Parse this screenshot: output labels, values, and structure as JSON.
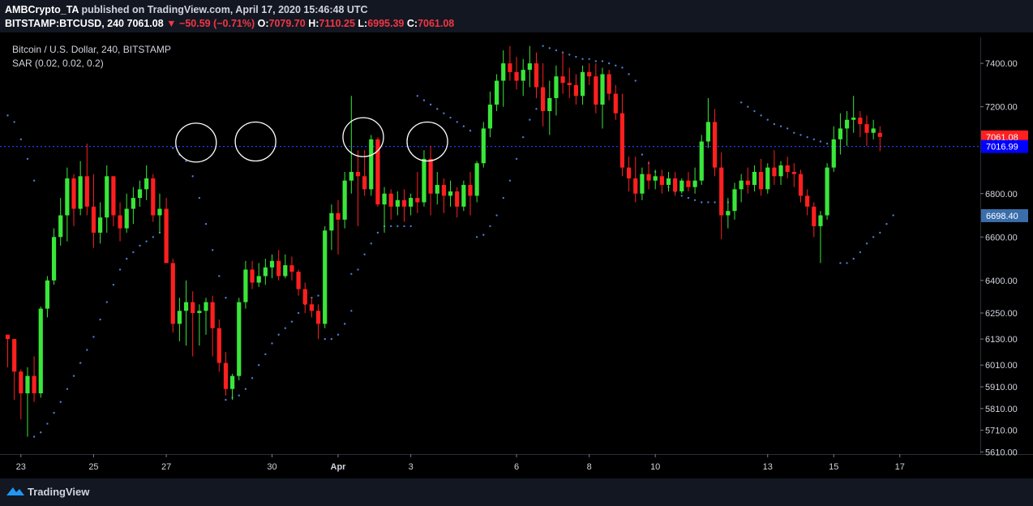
{
  "header": {
    "author": "AMBCrypto_TA",
    "published_text": "published on TradingView.com, April 17, 2020 15:46:48 UTC",
    "symbol": "BITSTAMP:BTCUSD, 240",
    "last": "7061.08",
    "change_arrow": "▼",
    "change": "−50.59 (−0.71%)",
    "o_label": "O:",
    "o": "7079.70",
    "h_label": "H:",
    "h": "7110.25",
    "l_label": "L:",
    "l": "6995.39",
    "c_label": "C:",
    "c": "7061.08"
  },
  "footer": {
    "brand": "TradingView",
    "brand_icon": "tradingview-logo-icon"
  },
  "colors": {
    "up": "#39e639",
    "down": "#ff1f1f",
    "sar": "#4e7bd8",
    "background": "#000000",
    "axis": "#2a2e39"
  },
  "chart_data": {
    "type": "candlestick",
    "title": "Bitcoin / U.S. Dollar, 240, BITSTAMP",
    "indicator": "SAR (0.02, 0.02, 0.2)",
    "x_ticks": [
      "23",
      "25",
      "27",
      "30",
      "Apr",
      "3",
      "6",
      "8",
      "10",
      "13",
      "15",
      "17"
    ],
    "y_ticks": [
      5610,
      5710,
      5810,
      5910,
      6010,
      6130,
      6250,
      6400,
      6600,
      6800,
      7200,
      7400
    ],
    "y_tick_labels": [
      "5610.00",
      "5710.00",
      "5810.00",
      "5910.00",
      "6010.00",
      "6130.00",
      "6250.00",
      "6400.00",
      "6600.00",
      "6800.00",
      "7200.00",
      "7400.00"
    ],
    "ylim": [
      5600,
      7520
    ],
    "price_labels": [
      {
        "value": 7061.08,
        "label": "7061.08",
        "color": "#ff1f1f"
      },
      {
        "value": 7016.99,
        "label": "7016.99",
        "color": "#0000ff"
      },
      {
        "value": 6698.4,
        "label": "6698.40",
        "color": "#3a6dab"
      }
    ],
    "hline": 7016.99,
    "circles": [
      {
        "index": 28.5,
        "price": 7035
      },
      {
        "index": 37.5,
        "price": 7040
      },
      {
        "index": 53.8,
        "price": 7060
      },
      {
        "index": 63.5,
        "price": 7040
      }
    ],
    "candles": [
      [
        6150,
        6150,
        6000,
        6130
      ],
      [
        6130,
        6130,
        5850,
        5980
      ],
      [
        5980,
        5990,
        5760,
        5880
      ],
      [
        5880,
        6000,
        5680,
        5960
      ],
      [
        5960,
        6050,
        5840,
        5880
      ],
      [
        5880,
        6280,
        5860,
        6270
      ],
      [
        6270,
        6420,
        6230,
        6400
      ],
      [
        6400,
        6640,
        6380,
        6600
      ],
      [
        6600,
        6780,
        6560,
        6700
      ],
      [
        6700,
        6920,
        6580,
        6870
      ],
      [
        6870,
        6890,
        6650,
        6730
      ],
      [
        6730,
        6950,
        6700,
        6880
      ],
      [
        6880,
        7030,
        6700,
        6740
      ],
      [
        6740,
        6890,
        6550,
        6620
      ],
      [
        6620,
        6760,
        6570,
        6690
      ],
      [
        6690,
        6930,
        6620,
        6880
      ],
      [
        6880,
        6880,
        6650,
        6700
      ],
      [
        6700,
        6760,
        6580,
        6640
      ],
      [
        6640,
        6800,
        6620,
        6730
      ],
      [
        6730,
        6830,
        6660,
        6780
      ],
      [
        6780,
        6860,
        6740,
        6820
      ],
      [
        6820,
        6930,
        6770,
        6870
      ],
      [
        6870,
        6890,
        6670,
        6700
      ],
      [
        6700,
        6800,
        6620,
        6730
      ],
      [
        6730,
        6780,
        6480,
        6480
      ],
      [
        6480,
        6500,
        6160,
        6200
      ],
      [
        6200,
        6320,
        6120,
        6260
      ],
      [
        6260,
        6400,
        6100,
        6300
      ],
      [
        6300,
        6350,
        6050,
        6250
      ],
      [
        6250,
        6290,
        6100,
        6260
      ],
      [
        6260,
        6320,
        6150,
        6300
      ],
      [
        6300,
        6330,
        6050,
        6180
      ],
      [
        6180,
        6220,
        5980,
        6020
      ],
      [
        6020,
        6070,
        5870,
        5900
      ],
      [
        5900,
        5970,
        5850,
        5960
      ],
      [
        5960,
        6320,
        5940,
        6300
      ],
      [
        6300,
        6490,
        6270,
        6450
      ],
      [
        6450,
        6490,
        6360,
        6390
      ],
      [
        6390,
        6480,
        6370,
        6420
      ],
      [
        6420,
        6500,
        6380,
        6460
      ],
      [
        6460,
        6520,
        6410,
        6490
      ],
      [
        6490,
        6540,
        6400,
        6420
      ],
      [
        6420,
        6520,
        6410,
        6470
      ],
      [
        6470,
        6510,
        6400,
        6440
      ],
      [
        6440,
        6450,
        6330,
        6360
      ],
      [
        6360,
        6390,
        6250,
        6290
      ],
      [
        6290,
        6320,
        6230,
        6260
      ],
      [
        6260,
        6290,
        6130,
        6200
      ],
      [
        6200,
        6650,
        6180,
        6630
      ],
      [
        6630,
        6750,
        6540,
        6710
      ],
      [
        6710,
        6770,
        6520,
        6680
      ],
      [
        6680,
        6900,
        6640,
        6860
      ],
      [
        6860,
        7250,
        6800,
        6900
      ],
      [
        6900,
        7000,
        6650,
        6880
      ],
      [
        6880,
        7000,
        6790,
        6820
      ],
      [
        6820,
        7070,
        6790,
        7050
      ],
      [
        7050,
        7060,
        6740,
        6750
      ],
      [
        6750,
        6830,
        6620,
        6800
      ],
      [
        6800,
        6820,
        6680,
        6740
      ],
      [
        6740,
        6810,
        6700,
        6770
      ],
      [
        6770,
        6820,
        6670,
        6740
      ],
      [
        6740,
        6800,
        6700,
        6780
      ],
      [
        6780,
        6900,
        6710,
        6760
      ],
      [
        6760,
        7000,
        6740,
        6960
      ],
      [
        6960,
        7020,
        6700,
        6800
      ],
      [
        6800,
        6900,
        6750,
        6840
      ],
      [
        6840,
        6870,
        6710,
        6790
      ],
      [
        6790,
        6860,
        6740,
        6810
      ],
      [
        6810,
        6830,
        6690,
        6740
      ],
      [
        6740,
        6860,
        6720,
        6840
      ],
      [
        6840,
        6900,
        6700,
        6790
      ],
      [
        6790,
        6950,
        6760,
        6940
      ],
      [
        6940,
        7130,
        6920,
        7100
      ],
      [
        7100,
        7270,
        7060,
        7210
      ],
      [
        7210,
        7350,
        7180,
        7320
      ],
      [
        7320,
        7460,
        7200,
        7400
      ],
      [
        7400,
        7480,
        7320,
        7360
      ],
      [
        7360,
        7430,
        7280,
        7320
      ],
      [
        7320,
        7420,
        7250,
        7370
      ],
      [
        7370,
        7480,
        7290,
        7400
      ],
      [
        7400,
        7450,
        7240,
        7290
      ],
      [
        7290,
        7400,
        7110,
        7180
      ],
      [
        7180,
        7320,
        7070,
        7240
      ],
      [
        7240,
        7390,
        7160,
        7340
      ],
      [
        7340,
        7450,
        7260,
        7310
      ],
      [
        7310,
        7380,
        7240,
        7300
      ],
      [
        7300,
        7350,
        7210,
        7250
      ],
      [
        7250,
        7390,
        7210,
        7360
      ],
      [
        7360,
        7400,
        7300,
        7340
      ],
      [
        7340,
        7400,
        7170,
        7210
      ],
      [
        7210,
        7380,
        7100,
        7350
      ],
      [
        7350,
        7370,
        7230,
        7260
      ],
      [
        7260,
        7300,
        7140,
        7170
      ],
      [
        7170,
        7260,
        6880,
        6920
      ],
      [
        6920,
        6970,
        6810,
        6870
      ],
      [
        6870,
        6970,
        6760,
        6800
      ],
      [
        6800,
        6920,
        6770,
        6890
      ],
      [
        6890,
        6950,
        6820,
        6860
      ],
      [
        6860,
        6910,
        6820,
        6880
      ],
      [
        6880,
        6910,
        6800,
        6840
      ],
      [
        6840,
        6900,
        6810,
        6870
      ],
      [
        6870,
        6900,
        6790,
        6810
      ],
      [
        6810,
        6870,
        6800,
        6860
      ],
      [
        6860,
        6900,
        6810,
        6830
      ],
      [
        6830,
        6920,
        6800,
        6860
      ],
      [
        6860,
        7070,
        6840,
        7040
      ],
      [
        7040,
        7240,
        7010,
        7130
      ],
      [
        7130,
        7190,
        6880,
        6920
      ],
      [
        6920,
        6990,
        6590,
        6700
      ],
      [
        6700,
        6780,
        6640,
        6720
      ],
      [
        6720,
        6850,
        6680,
        6820
      ],
      [
        6820,
        6890,
        6760,
        6860
      ],
      [
        6860,
        6920,
        6800,
        6840
      ],
      [
        6840,
        6930,
        6810,
        6900
      ],
      [
        6900,
        6960,
        6790,
        6820
      ],
      [
        6820,
        6940,
        6800,
        6920
      ],
      [
        6920,
        7000,
        6840,
        6880
      ],
      [
        6880,
        6950,
        6840,
        6930
      ],
      [
        6930,
        6970,
        6870,
        6900
      ],
      [
        6900,
        6940,
        6830,
        6890
      ],
      [
        6890,
        6910,
        6760,
        6790
      ],
      [
        6790,
        6820,
        6700,
        6740
      ],
      [
        6740,
        6760,
        6600,
        6650
      ],
      [
        6650,
        6720,
        6480,
        6700
      ],
      [
        6700,
        6940,
        6680,
        6920
      ],
      [
        6920,
        7110,
        6900,
        7050
      ],
      [
        7050,
        7170,
        6980,
        7100
      ],
      [
        7100,
        7180,
        7020,
        7140
      ],
      [
        7140,
        7250,
        7080,
        7150
      ],
      [
        7150,
        7180,
        7060,
        7120
      ],
      [
        7120,
        7160,
        7020,
        7080
      ],
      [
        7080,
        7140,
        7050,
        7100
      ],
      [
        7079.7,
        7110.25,
        6995.39,
        7061.08
      ]
    ],
    "sar": [
      {
        "start": 0,
        "end": 4,
        "values": [
          7160,
          7130,
          7050,
          6960,
          6860
        ]
      },
      {
        "start": 4,
        "end": 24,
        "values": [
          5680,
          5700,
          5740,
          5790,
          5840,
          5900,
          5960,
          6020,
          6080,
          6140,
          6220,
          6300,
          6380,
          6450,
          6500,
          6530,
          6560,
          6580,
          6600,
          6620,
          6640
        ]
      },
      {
        "start": 25,
        "end": 33,
        "values": [
          7010,
          6980,
          6950,
          6880,
          6780,
          6660,
          6540,
          6420,
          6320
        ]
      },
      {
        "start": 33,
        "end": 47,
        "values": [
          5850,
          5860,
          5870,
          5900,
          5950,
          6010,
          6060,
          6110,
          6150,
          6180,
          6210,
          6250,
          6290,
          6320,
          6330
        ]
      },
      {
        "start": 48,
        "end": 52,
        "values": [
          6130,
          6130,
          6150,
          6200,
          6260
        ]
      },
      {
        "start": 52,
        "end": 61,
        "values": [
          6430,
          6450,
          6520,
          6570,
          6620,
          6650,
          6650,
          6650,
          6650,
          6650
        ]
      },
      {
        "start": 62,
        "end": 70,
        "values": [
          7250,
          7230,
          7210,
          7190,
          7170,
          7150,
          7130,
          7110,
          7090
        ]
      },
      {
        "start": 71,
        "end": 80,
        "values": [
          6600,
          6610,
          6650,
          6700,
          6780,
          6860,
          6960,
          7060,
          7140,
          7190
        ]
      },
      {
        "start": 81,
        "end": 95,
        "values": [
          7480,
          7470,
          7460,
          7450,
          7440,
          7430,
          7420,
          7420,
          7410,
          7410,
          7400,
          7390,
          7380,
          7350,
          7320
        ]
      },
      {
        "start": 96,
        "end": 110,
        "values": [
          6980,
          6940,
          6900,
          6860,
          6830,
          6810,
          6790,
          6780,
          6770,
          6760,
          6760,
          6760,
          6760,
          6760,
          6760
        ]
      },
      {
        "start": 111,
        "end": 125,
        "values": [
          7220,
          7200,
          7180,
          7160,
          7140,
          7120,
          7110,
          7100,
          7080,
          7070,
          7060,
          7050,
          7040,
          7030,
          7020
        ]
      },
      {
        "start": 126,
        "end": 134,
        "values": [
          6480,
          6480,
          6500,
          6530,
          6570,
          6600,
          6620,
          6660,
          6700
        ]
      }
    ]
  }
}
